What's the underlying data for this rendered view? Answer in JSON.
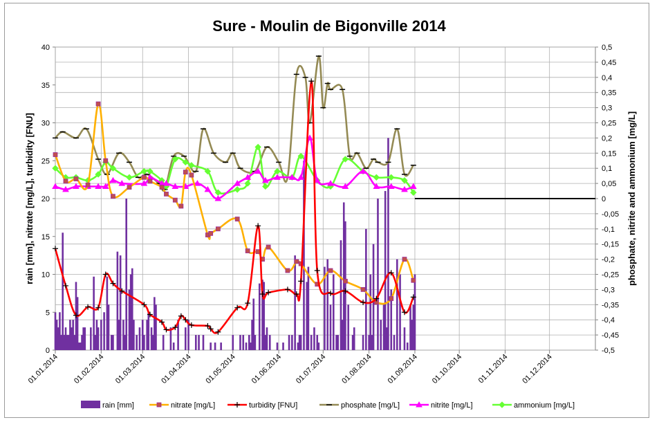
{
  "chart_data": {
    "type": "line",
    "title": "Sure - Moulin de Bigonville  2014",
    "ylabel_left": "rain [mm],  nitrate [mg/L], turbidity [FNU]",
    "ylabel_right": "phosphate, nitrite and ammonium [mg/L]",
    "xlabel": "",
    "ylim_left": [
      0,
      40
    ],
    "ylim_right": [
      -0.5,
      0.5
    ],
    "left_ticks": [
      "0",
      "5",
      "10",
      "15",
      "20",
      "25",
      "30",
      "35",
      "40"
    ],
    "right_ticks": [
      "-0,5",
      "-0,45",
      "-0,4",
      "-0,35",
      "-0,3",
      "-0,25",
      "-0,2",
      "-0,15",
      "-0,1",
      "-0,05",
      "0",
      "0,05",
      "0,1",
      "0,15",
      "0,2",
      "0,25",
      "0,3",
      "0,35",
      "0,4",
      "0,45",
      "0,5"
    ],
    "x_ticks": [
      "01.01.2014",
      "01.02.2014",
      "01.03.2014",
      "01.04.2014",
      "01.05.2014",
      "01.06.2014",
      "01.07.2014",
      "01.08.2014",
      "01.09.2014",
      "01.10.2014",
      "01.11.2014",
      "01.12.2014"
    ],
    "xlim_days": [
      0,
      365
    ],
    "grid": true,
    "legend_position": "bottom",
    "series": [
      {
        "name": "rain [mm]",
        "kind": "bar",
        "axis": "left",
        "color": "#7030a0",
        "x": [
          0,
          1,
          2,
          3,
          4,
          5,
          6,
          7,
          8,
          9,
          10,
          11,
          12,
          13,
          14,
          15,
          16,
          17,
          18,
          19,
          20,
          24,
          26,
          27,
          28,
          29,
          31,
          33,
          35,
          36,
          38,
          39,
          42,
          43,
          44,
          46,
          47,
          48,
          50,
          51,
          52,
          53,
          55,
          57,
          59,
          60,
          62,
          63,
          65,
          66,
          67,
          68,
          73,
          78,
          80,
          83,
          88,
          90,
          95,
          97,
          100,
          105,
          108,
          112,
          120,
          125,
          127,
          129,
          131,
          132,
          133,
          134,
          135,
          138,
          140,
          141,
          142,
          143,
          145,
          150,
          154,
          158,
          160,
          162,
          164,
          165,
          166,
          168,
          170,
          171,
          173,
          175,
          177,
          178,
          182,
          184,
          186,
          188,
          190,
          191,
          193,
          194,
          195,
          196,
          198,
          201,
          202,
          208,
          210,
          212,
          213,
          214,
          215,
          218,
          220,
          222,
          223,
          224,
          225,
          227,
          229,
          231,
          233,
          236,
          238,
          240,
          241,
          242,
          243
        ],
        "values": [
          5,
          4,
          3,
          5,
          2,
          15.5,
          2,
          3,
          2,
          2,
          4,
          3,
          4,
          2,
          9,
          7,
          1,
          1,
          2,
          3,
          3,
          3,
          9.7,
          2,
          4,
          3,
          4,
          5,
          9.7,
          6,
          2,
          2,
          13,
          4,
          12.5,
          4,
          2,
          20,
          8,
          10,
          10.8,
          4,
          2,
          3,
          4,
          2,
          4,
          5,
          3,
          2,
          7,
          6,
          2,
          3,
          1,
          4,
          3,
          4,
          2,
          2,
          2,
          1,
          1,
          1,
          2,
          2,
          2,
          1,
          2,
          1,
          4,
          6.8,
          2,
          8.8,
          9.3,
          9,
          2,
          3,
          2,
          1,
          1,
          2,
          2,
          12.5,
          1,
          2,
          2,
          25,
          9,
          11,
          2,
          3,
          2,
          1,
          11,
          12,
          6,
          10,
          2,
          2,
          14.5,
          4,
          19.5,
          17,
          6,
          2,
          3,
          2,
          16,
          2,
          10,
          2,
          14,
          20,
          4,
          6,
          21,
          3,
          28,
          8,
          2,
          12,
          10,
          3,
          1,
          6,
          4,
          6,
          10
        ]
      },
      {
        "name": "nitrate [mg/L]",
        "kind": "line",
        "axis": "left",
        "color": "#ffb000",
        "marker": "square",
        "x": [
          0,
          7,
          14,
          22,
          29,
          34,
          39,
          50,
          60,
          64,
          72,
          75,
          81,
          85,
          88,
          92,
          103,
          105,
          110,
          123,
          130,
          137,
          140,
          144,
          157,
          163,
          166,
          177,
          186,
          196,
          208,
          217,
          227,
          236,
          242
        ],
        "values": [
          25.8,
          22.3,
          22.6,
          21.8,
          32.5,
          25,
          20.3,
          21.5,
          22.8,
          22.3,
          21.5,
          20.6,
          19.8,
          19,
          23.5,
          23.1,
          15.2,
          15.4,
          16,
          17.3,
          13.1,
          13,
          12,
          13.6,
          10.5,
          11.7,
          11.4,
          8.7,
          10.5,
          9.1,
          8,
          6.3,
          6.8,
          12,
          9.2
        ]
      },
      {
        "name": "turbidity [FNU]",
        "kind": "line",
        "axis": "left",
        "color": "#ff0000",
        "marker": "plus",
        "x": [
          0,
          7,
          14,
          22,
          29,
          34,
          39,
          45,
          60,
          64,
          72,
          75,
          81,
          85,
          88,
          92,
          103,
          105,
          110,
          123,
          130,
          137,
          140,
          144,
          157,
          163,
          166,
          173,
          177,
          186,
          196,
          208,
          217,
          227,
          236,
          242
        ],
        "values": [
          13.4,
          8.5,
          4.6,
          5.7,
          5.6,
          10,
          8.8,
          7.8,
          6,
          4.7,
          3.7,
          2.7,
          3,
          4.5,
          4,
          3.3,
          3.2,
          2.8,
          2.4,
          5.6,
          6.2,
          16.4,
          7.4,
          7.6,
          8,
          7.4,
          9.1,
          35.5,
          10.5,
          7.5,
          7.8,
          6.3,
          6.8,
          10.2,
          5,
          7
        ]
      },
      {
        "name": "phosphate [mg/L]",
        "kind": "line",
        "axis": "right",
        "color": "#948a54",
        "marker": "dash",
        "x": [
          0,
          5,
          14,
          21,
          29,
          35,
          43,
          50,
          56,
          62,
          70,
          74,
          80,
          87,
          95,
          100,
          107,
          115,
          120,
          125,
          135,
          143,
          151,
          157,
          163,
          169,
          172,
          178,
          181,
          184,
          186,
          194,
          199,
          204,
          210,
          215,
          218,
          225,
          231,
          236,
          242
        ],
        "values": [
          0.2,
          0.22,
          0.2,
          0.23,
          0.13,
          0.08,
          0.15,
          0.12,
          0.07,
          0.08,
          0.05,
          0.03,
          0.14,
          0.14,
          0.09,
          0.23,
          0.15,
          0.12,
          0.15,
          0.1,
          0.09,
          0.17,
          0.12,
          0.07,
          0.41,
          0.4,
          0.25,
          0.47,
          0.3,
          0.38,
          0.36,
          0.36,
          0.14,
          0.15,
          0.1,
          0.13,
          0.12,
          0.12,
          0.23,
          0.08,
          0.11
        ]
      },
      {
        "name": "nitrite [mg/L]",
        "kind": "line",
        "axis": "right",
        "color": "#ff00ff",
        "marker": "triangle",
        "x": [
          0,
          7,
          14,
          22,
          29,
          34,
          39,
          45,
          60,
          64,
          72,
          75,
          81,
          88,
          96,
          103,
          110,
          123,
          130,
          137,
          142,
          150,
          160,
          166,
          172,
          177,
          186,
          196,
          208,
          217,
          227,
          236,
          242
        ],
        "values": [
          0.04,
          0.03,
          0.04,
          0.04,
          0.04,
          0.04,
          0.06,
          0.05,
          0.05,
          0.07,
          0.05,
          0.05,
          0.04,
          0.04,
          0.05,
          0.03,
          0.0,
          0.05,
          0.07,
          0.09,
          0.06,
          0.07,
          0.07,
          0.07,
          0.2,
          0.06,
          0.05,
          0.04,
          0.09,
          0.04,
          0.04,
          0.03,
          0.04
        ]
      },
      {
        "name": "ammonium [mg/L]",
        "kind": "line",
        "axis": "right",
        "color": "#66ff33",
        "marker": "diamond",
        "x": [
          0,
          7,
          14,
          22,
          29,
          34,
          39,
          50,
          60,
          64,
          72,
          75,
          81,
          88,
          92,
          103,
          110,
          123,
          130,
          137,
          142,
          150,
          160,
          166,
          177,
          186,
          196,
          208,
          217,
          227,
          236,
          242
        ],
        "values": [
          0.1,
          0.07,
          0.07,
          0.06,
          0.08,
          0.12,
          0.1,
          0.07,
          0.09,
          0.09,
          0.06,
          0.04,
          0.13,
          0.12,
          0.11,
          0.09,
          0.02,
          0.03,
          0.05,
          0.17,
          0.04,
          0.09,
          0.07,
          0.14,
          0.06,
          0.04,
          0.13,
          0.09,
          0.07,
          0.07,
          0.06,
          0.02
        ]
      },
      {
        "name": "",
        "kind": "reference-line",
        "axis": "right",
        "color": "#000000",
        "x": [
          243,
          365
        ],
        "values": [
          0,
          0
        ]
      }
    ]
  }
}
